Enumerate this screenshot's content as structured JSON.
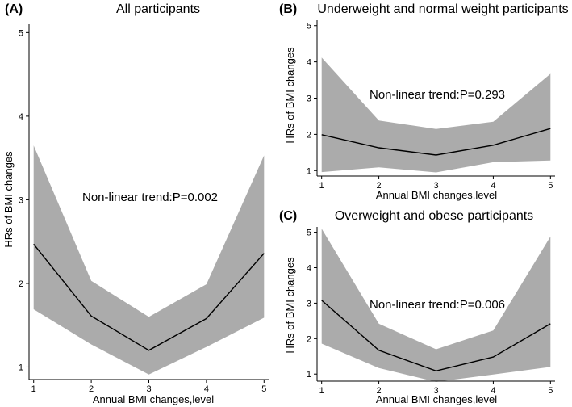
{
  "chart_data": [
    {
      "panel_label": "(A)",
      "title": "All participants",
      "type": "line",
      "xlabel": "Annual BMI changes,level",
      "ylabel": "HRs of BMI changes",
      "x": [
        1,
        2,
        3,
        4,
        5
      ],
      "xlim": [
        0.92,
        5.08
      ],
      "ylim": [
        0.85,
        5.1
      ],
      "yticks": [
        1,
        2,
        3,
        4,
        5
      ],
      "series": [
        {
          "name": "HR",
          "values": [
            2.47,
            1.61,
            1.2,
            1.58,
            2.36
          ]
        },
        {
          "name": "lower CI",
          "values": [
            1.69,
            1.27,
            0.91,
            1.24,
            1.59
          ]
        },
        {
          "name": "upper CI",
          "values": [
            3.65,
            2.03,
            1.6,
            1.99,
            3.53
          ]
        }
      ],
      "annotation": "Non-linear trend:P=0.002"
    },
    {
      "panel_label": "(B)",
      "title": "Underweight and normal weight participants",
      "type": "line",
      "xlabel": "Annual BMI changes,level",
      "ylabel": "HRs of BMI changes",
      "x": [
        1,
        2,
        3,
        4,
        5
      ],
      "xlim": [
        0.92,
        5.08
      ],
      "ylim": [
        0.85,
        5.15
      ],
      "yticks": [
        1,
        2,
        3,
        4,
        5
      ],
      "series": [
        {
          "name": "HR",
          "values": [
            1.99,
            1.63,
            1.43,
            1.7,
            2.16
          ]
        },
        {
          "name": "lower CI",
          "values": [
            0.96,
            1.09,
            0.95,
            1.23,
            1.28
          ]
        },
        {
          "name": "upper CI",
          "values": [
            4.12,
            2.38,
            2.15,
            2.35,
            3.67
          ]
        }
      ],
      "annotation": "Non-linear trend:P=0.293"
    },
    {
      "panel_label": "(C)",
      "title": "Overweight and obese participants",
      "type": "line",
      "xlabel": "Annual BMI changes,level",
      "ylabel": "HRs of BMI changes",
      "x": [
        1,
        2,
        3,
        4,
        5
      ],
      "xlim": [
        0.92,
        5.08
      ],
      "ylim": [
        0.8,
        5.15
      ],
      "yticks": [
        1,
        2,
        3,
        4,
        5
      ],
      "series": [
        {
          "name": "HR",
          "values": [
            3.08,
            1.67,
            1.09,
            1.48,
            2.42
          ]
        },
        {
          "name": "lower CI",
          "values": [
            1.86,
            1.17,
            0.78,
            0.99,
            1.2
          ]
        },
        {
          "name": "upper CI",
          "values": [
            5.1,
            2.42,
            1.7,
            2.23,
            4.88
          ]
        }
      ],
      "annotation": "Non-linear trend:P=0.006"
    }
  ],
  "colors": {
    "band": "#ababab",
    "line": "#000000",
    "axis": "#000000"
  }
}
